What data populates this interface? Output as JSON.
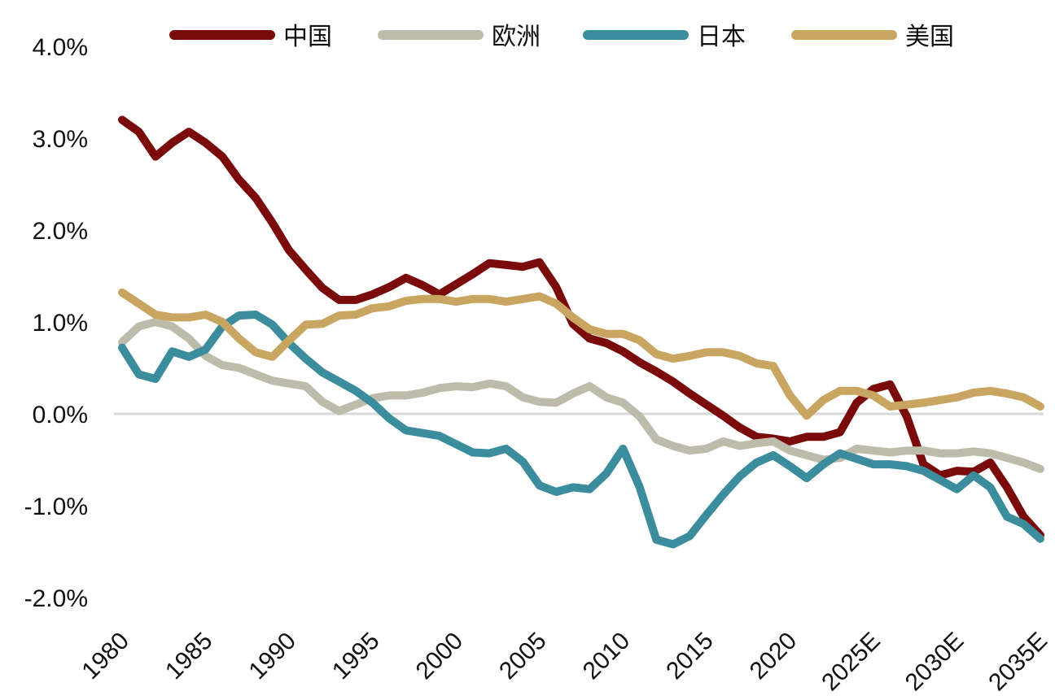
{
  "chart_data": {
    "type": "line",
    "title": "",
    "xlabel": "",
    "ylabel": "",
    "x": [
      1980,
      1981,
      1982,
      1983,
      1984,
      1985,
      1986,
      1987,
      1988,
      1989,
      1990,
      1991,
      1992,
      1993,
      1994,
      1995,
      1996,
      1997,
      1998,
      1999,
      2000,
      2001,
      2002,
      2003,
      2004,
      2005,
      2006,
      2007,
      2008,
      2009,
      2010,
      2011,
      2012,
      2013,
      2014,
      2015,
      2016,
      2017,
      2018,
      2019,
      2020,
      2021,
      2022,
      2023,
      2024,
      2025,
      2026,
      2027,
      2028,
      2029,
      2030,
      2031,
      2032,
      2033,
      2034,
      2035
    ],
    "x_tick_values": [
      1980,
      1985,
      1990,
      1995,
      2000,
      2005,
      2010,
      2015,
      2020,
      2025,
      2030,
      2035
    ],
    "x_tick_labels": [
      "1980",
      "1985",
      "1990",
      "1995",
      "2000",
      "2005",
      "2010",
      "2015",
      "2020",
      "2025E",
      "2030E",
      "2035E"
    ],
    "y_tick_values": [
      4.0,
      3.0,
      2.0,
      1.0,
      0.0,
      -1.0,
      -2.0
    ],
    "y_tick_labels": [
      "4.0%",
      "3.0%",
      "2.0%",
      "1.0%",
      "0.0%",
      "-1.0%",
      "-2.0%"
    ],
    "ylim": [
      -2.0,
      4.0
    ],
    "xlim": [
      1980,
      2035
    ],
    "grid": false,
    "zero_line": true,
    "legend_position": "top",
    "series": [
      {
        "name": "中国",
        "color": "#7b0a0a",
        "values": [
          3.2,
          3.07,
          2.8,
          2.95,
          3.07,
          2.95,
          2.8,
          2.55,
          2.35,
          2.08,
          1.78,
          1.57,
          1.37,
          1.24,
          1.24,
          1.3,
          1.38,
          1.48,
          1.4,
          1.3,
          1.41,
          1.52,
          1.64,
          1.62,
          1.6,
          1.65,
          1.38,
          0.98,
          0.82,
          0.77,
          0.68,
          0.56,
          0.46,
          0.35,
          0.22,
          0.1,
          -0.02,
          -0.15,
          -0.25,
          -0.27,
          -0.3,
          -0.25,
          -0.25,
          -0.2,
          0.12,
          0.27,
          0.32,
          -0.03,
          -0.55,
          -0.67,
          -0.62,
          -0.63,
          -0.53,
          -0.8,
          -1.12,
          -1.32
        ]
      },
      {
        "name": "欧洲",
        "color": "#bdbcaa",
        "values": [
          0.78,
          0.95,
          1.0,
          0.95,
          0.82,
          0.63,
          0.53,
          0.5,
          0.43,
          0.36,
          0.33,
          0.3,
          0.13,
          0.03,
          0.1,
          0.17,
          0.2,
          0.2,
          0.23,
          0.28,
          0.3,
          0.29,
          0.33,
          0.3,
          0.18,
          0.13,
          0.12,
          0.22,
          0.3,
          0.18,
          0.12,
          -0.03,
          -0.28,
          -0.35,
          -0.4,
          -0.38,
          -0.3,
          -0.35,
          -0.32,
          -0.3,
          -0.4,
          -0.45,
          -0.5,
          -0.48,
          -0.38,
          -0.4,
          -0.42,
          -0.4,
          -0.4,
          -0.43,
          -0.43,
          -0.41,
          -0.43,
          -0.48,
          -0.53,
          -0.6
        ]
      },
      {
        "name": "日本",
        "color": "#3b8c9c",
        "values": [
          0.72,
          0.43,
          0.38,
          0.68,
          0.62,
          0.7,
          0.95,
          1.07,
          1.08,
          0.97,
          0.77,
          0.6,
          0.45,
          0.35,
          0.25,
          0.12,
          -0.05,
          -0.18,
          -0.21,
          -0.24,
          -0.33,
          -0.42,
          -0.43,
          -0.38,
          -0.52,
          -0.78,
          -0.85,
          -0.8,
          -0.82,
          -0.65,
          -0.38,
          -0.8,
          -1.37,
          -1.42,
          -1.33,
          -1.1,
          -0.88,
          -0.68,
          -0.53,
          -0.45,
          -0.57,
          -0.7,
          -0.55,
          -0.43,
          -0.49,
          -0.55,
          -0.55,
          -0.57,
          -0.62,
          -0.72,
          -0.82,
          -0.67,
          -0.8,
          -1.12,
          -1.2,
          -1.36
        ]
      },
      {
        "name": "美国",
        "color": "#c8a661",
        "values": [
          1.32,
          1.2,
          1.08,
          1.05,
          1.05,
          1.08,
          1.0,
          0.82,
          0.67,
          0.62,
          0.8,
          0.97,
          0.98,
          1.07,
          1.08,
          1.15,
          1.17,
          1.23,
          1.25,
          1.25,
          1.22,
          1.25,
          1.25,
          1.22,
          1.25,
          1.28,
          1.2,
          1.05,
          0.92,
          0.87,
          0.87,
          0.8,
          0.65,
          0.6,
          0.63,
          0.67,
          0.67,
          0.63,
          0.55,
          0.52,
          0.2,
          -0.02,
          0.15,
          0.25,
          0.25,
          0.2,
          0.08,
          0.1,
          0.12,
          0.15,
          0.18,
          0.23,
          0.25,
          0.22,
          0.18,
          0.08
        ]
      }
    ]
  }
}
